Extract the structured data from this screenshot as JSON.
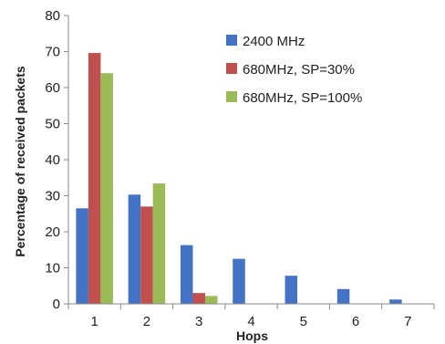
{
  "chart_data": {
    "type": "bar",
    "title": "",
    "xlabel": "Hops",
    "ylabel": "Percentage of received packets",
    "categories": [
      "1",
      "2",
      "3",
      "4",
      "5",
      "6",
      "7"
    ],
    "ylim": [
      0,
      80
    ],
    "yticks": [
      0,
      10,
      20,
      30,
      40,
      50,
      60,
      70,
      80
    ],
    "grid": false,
    "legend_position": "top-right",
    "series": [
      {
        "name": "2400 MHz",
        "color": "#4472C4",
        "values": [
          26.5,
          30.3,
          16.3,
          12.5,
          7.8,
          4.1,
          1.2
        ]
      },
      {
        "name": "680MHz, SP=30%",
        "color": "#C0504D",
        "values": [
          69.6,
          27.0,
          3.0,
          0,
          0,
          0,
          0
        ]
      },
      {
        "name": "680MHz, SP=100%",
        "color": "#9BBB59",
        "values": [
          64.0,
          33.4,
          2.2,
          0,
          0,
          0,
          0
        ]
      }
    ]
  }
}
